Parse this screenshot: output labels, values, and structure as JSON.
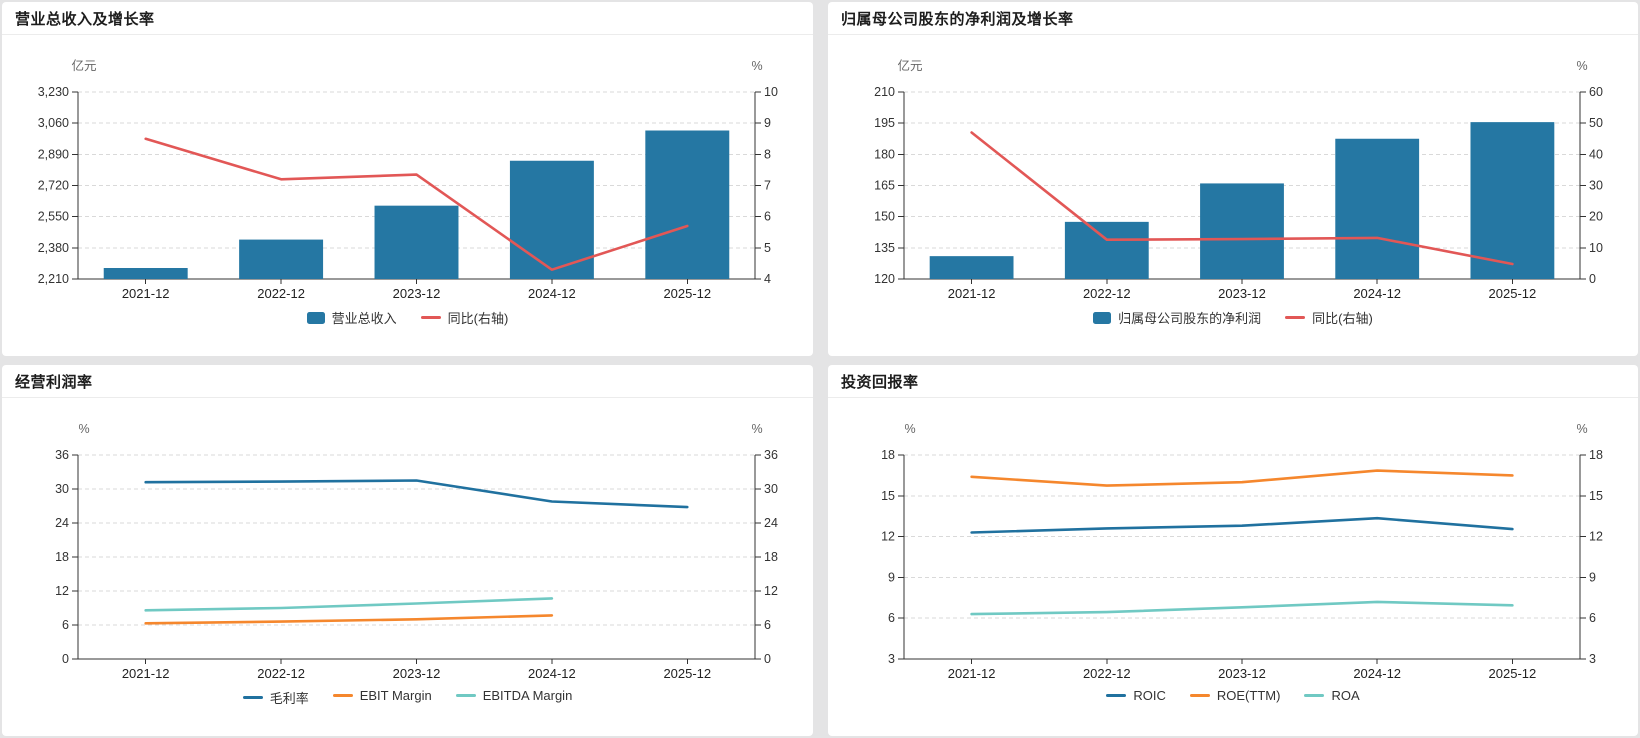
{
  "page": {
    "background": "#e4e4e5",
    "card_background": "#ffffff"
  },
  "palette": {
    "bar_blue": "#2577a3",
    "line_blue": "#20719f",
    "growth_red": "#e25756",
    "orange": "#f5872d",
    "teal": "#70c9c3"
  },
  "chart_data": [
    {
      "type": "combo",
      "title": "营业总收入及增长率",
      "categories": [
        "2021-12",
        "2022-12",
        "2023-12",
        "2024-12",
        "2025-12"
      ],
      "left_axis": {
        "unit": "亿元",
        "min": 2210,
        "max": 3230,
        "tick_labels": [
          "2,210",
          "2,380",
          "2,550",
          "2,720",
          "2,890",
          "3,060",
          "3,230"
        ]
      },
      "right_axis": {
        "unit": "%",
        "min": 4,
        "max": 10,
        "tick_labels": [
          "4",
          "5",
          "6",
          "7",
          "8",
          "9",
          "10"
        ]
      },
      "legend_position": "bottom",
      "grid": true,
      "series": [
        {
          "name": "营业总收入",
          "type": "bar",
          "axis": "left",
          "color": "#2577a3",
          "values": [
            2270,
            2425,
            2610,
            2855,
            3020
          ]
        },
        {
          "name": "同比(右轴)",
          "type": "line",
          "axis": "right",
          "color": "#e25756",
          "values": [
            8.5,
            7.2,
            7.35,
            4.3,
            5.7
          ]
        }
      ]
    },
    {
      "type": "combo",
      "title": "归属母公司股东的净利润及增长率",
      "categories": [
        "2021-12",
        "2022-12",
        "2023-12",
        "2024-12",
        "2025-12"
      ],
      "left_axis": {
        "unit": "亿元",
        "min": 120,
        "max": 210,
        "tick_labels": [
          "120",
          "135",
          "150",
          "165",
          "180",
          "195",
          "210"
        ]
      },
      "right_axis": {
        "unit": "%",
        "min": 0,
        "max": 60,
        "tick_labels": [
          "0",
          "10",
          "20",
          "30",
          "40",
          "50",
          "60"
        ]
      },
      "legend_position": "bottom",
      "grid": true,
      "series": [
        {
          "name": "归属母公司股东的净利润",
          "type": "bar",
          "axis": "left",
          "color": "#2577a3",
          "values": [
            131,
            147.5,
            166,
            187.5,
            195.5
          ]
        },
        {
          "name": "同比(右轴)",
          "type": "line",
          "axis": "right",
          "color": "#e25756",
          "values": [
            47,
            12.6,
            12.8,
            13.2,
            4.8
          ]
        }
      ]
    },
    {
      "type": "line",
      "title": "经营利润率",
      "categories": [
        "2021-12",
        "2022-12",
        "2023-12",
        "2024-12",
        "2025-12"
      ],
      "left_axis": {
        "unit": "%",
        "min": 0,
        "max": 36,
        "tick_labels": [
          "0",
          "6",
          "12",
          "18",
          "24",
          "30",
          "36"
        ]
      },
      "right_axis": {
        "unit": "%",
        "min": 0,
        "max": 36,
        "tick_labels": [
          "0",
          "6",
          "12",
          "18",
          "24",
          "30",
          "36"
        ]
      },
      "legend_position": "bottom",
      "grid": true,
      "series": [
        {
          "name": "毛利率",
          "type": "line",
          "axis": "left",
          "color": "#20719f",
          "values": [
            31.2,
            31.3,
            31.5,
            27.8,
            26.8
          ]
        },
        {
          "name": "EBIT Margin",
          "type": "line",
          "axis": "left",
          "color": "#f5872d",
          "values": [
            6.3,
            6.6,
            7.0,
            7.7,
            null
          ]
        },
        {
          "name": "EBITDA Margin",
          "type": "line",
          "axis": "left",
          "color": "#70c9c3",
          "values": [
            8.6,
            9.0,
            9.8,
            10.7,
            null
          ]
        }
      ]
    },
    {
      "type": "line",
      "title": "投资回报率",
      "categories": [
        "2021-12",
        "2022-12",
        "2023-12",
        "2024-12",
        "2025-12"
      ],
      "left_axis": {
        "unit": "%",
        "min": 3,
        "max": 18,
        "tick_labels": [
          "3",
          "6",
          "9",
          "12",
          "15",
          "18"
        ]
      },
      "right_axis": {
        "unit": "%",
        "min": 3,
        "max": 18,
        "tick_labels": [
          "3",
          "6",
          "9",
          "12",
          "15",
          "18"
        ]
      },
      "legend_position": "bottom",
      "grid": true,
      "series": [
        {
          "name": "ROIC",
          "type": "line",
          "axis": "left",
          "color": "#20719f",
          "values": [
            12.3,
            12.6,
            12.8,
            13.35,
            12.55
          ]
        },
        {
          "name": "ROE(TTM)",
          "type": "line",
          "axis": "left",
          "color": "#f5872d",
          "values": [
            16.4,
            15.75,
            16.0,
            16.85,
            16.5
          ]
        },
        {
          "name": "ROA",
          "type": "line",
          "axis": "left",
          "color": "#70c9c3",
          "values": [
            6.3,
            6.45,
            6.8,
            7.2,
            6.95
          ]
        }
      ]
    }
  ]
}
